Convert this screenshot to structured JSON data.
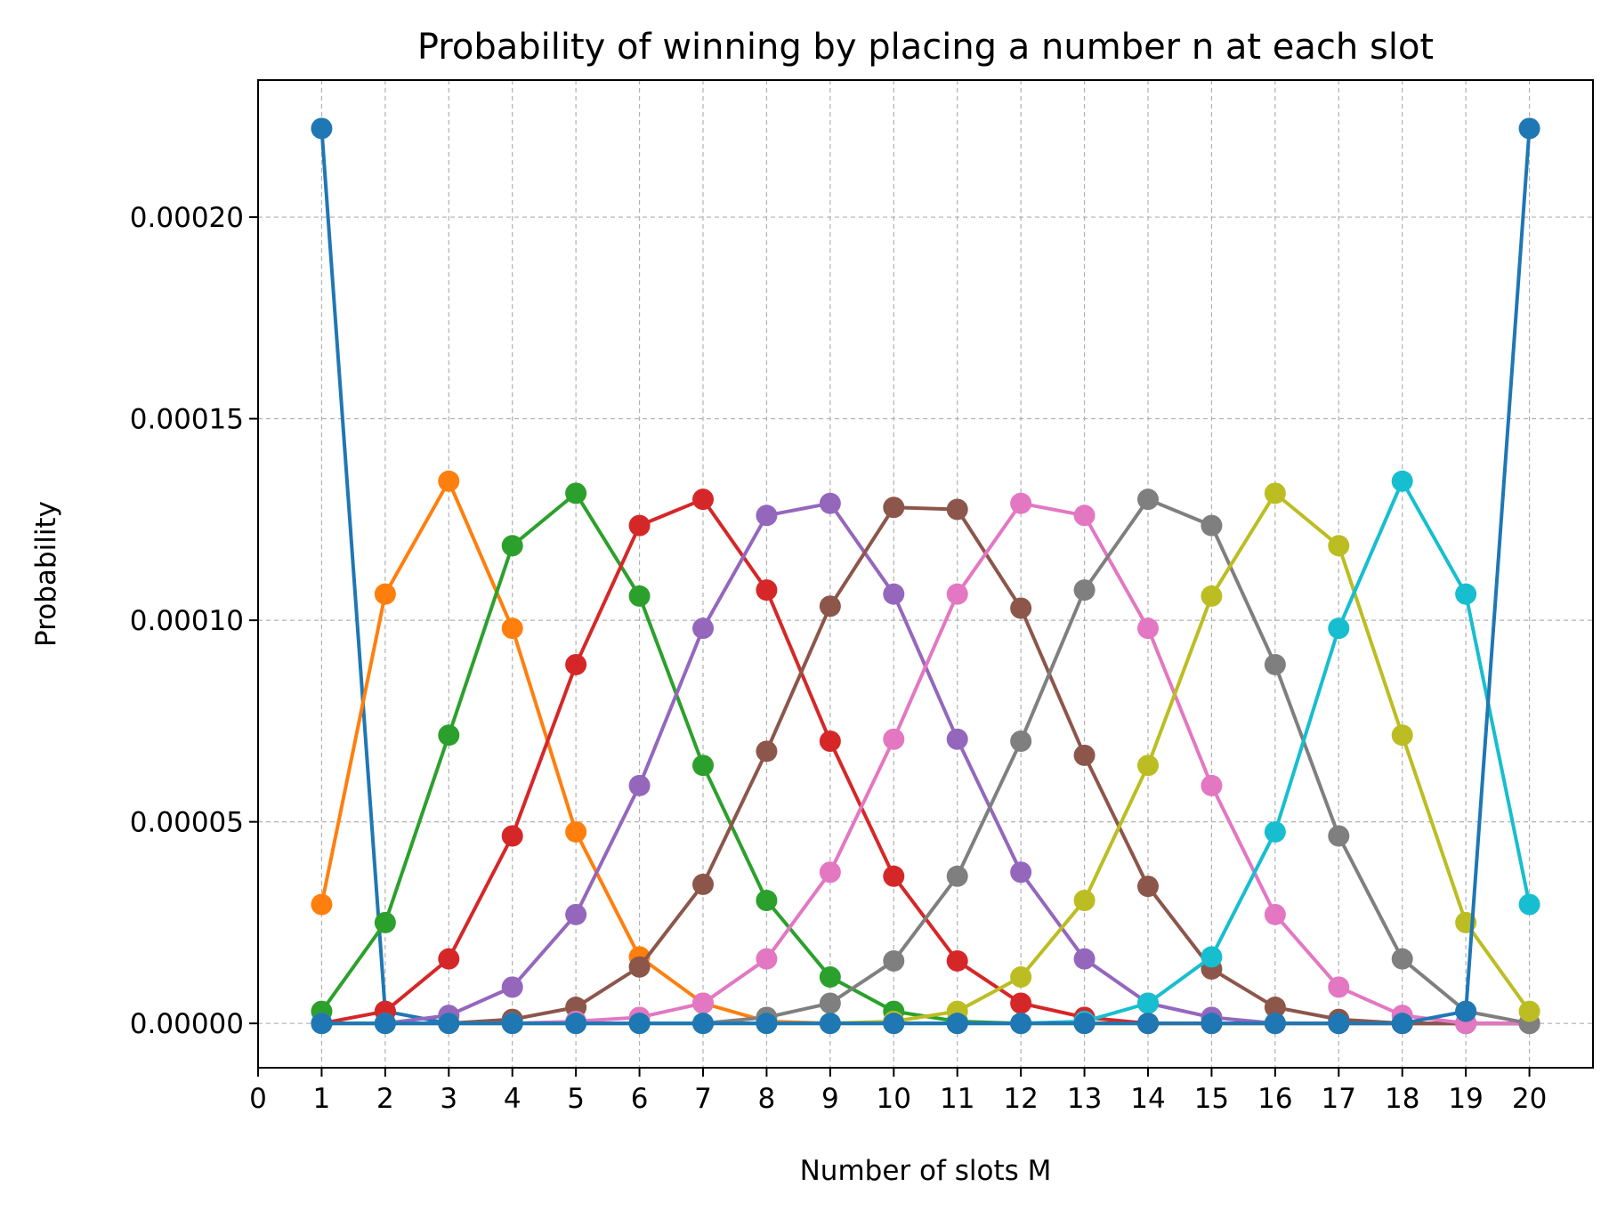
{
  "chart_data": {
    "type": "line",
    "title": "Probability of winning by placing a number n at each slot",
    "xlabel": "Number of slots M",
    "ylabel": "Probability",
    "xlim": [
      0,
      21
    ],
    "ylim": [
      -1.1e-05,
      0.000234
    ],
    "xticks": [
      0,
      1,
      2,
      3,
      4,
      5,
      6,
      7,
      8,
      9,
      10,
      11,
      12,
      13,
      14,
      15,
      16,
      17,
      18,
      19,
      20
    ],
    "yticks": [
      0,
      5e-05,
      0.0001,
      0.00015,
      0.0002
    ],
    "ytick_labels": [
      "0.00000",
      "0.00005",
      "0.00010",
      "0.00015",
      "0.00020"
    ],
    "grid": true,
    "marker": "circle",
    "x": [
      1,
      2,
      3,
      4,
      5,
      6,
      7,
      8,
      9,
      10,
      11,
      12,
      13,
      14,
      15,
      16,
      17,
      18,
      19,
      20
    ],
    "series": [
      {
        "color": "#1f77b4",
        "values": [
          0.000222,
          3e-06,
          0,
          0,
          0,
          0,
          0,
          0,
          0,
          0,
          0,
          0,
          0,
          0,
          0,
          0,
          0,
          0,
          0,
          0
        ]
      },
      {
        "color": "#ff7f0e",
        "values": [
          2.95e-05,
          0.0001065,
          0.0001345,
          9.8e-05,
          4.75e-05,
          1.65e-05,
          5e-06,
          5e-07,
          0,
          0,
          0,
          0,
          0,
          0,
          0,
          0,
          0,
          0,
          0,
          0
        ]
      },
      {
        "color": "#2ca02c",
        "values": [
          3e-06,
          2.5e-05,
          7.15e-05,
          0.0001185,
          0.0001315,
          0.000106,
          6.4e-05,
          3.05e-05,
          1.15e-05,
          3e-06,
          5e-07,
          0,
          0,
          0,
          0,
          0,
          0,
          0,
          0,
          0
        ]
      },
      {
        "color": "#d62728",
        "values": [
          0,
          3e-06,
          1.6e-05,
          4.65e-05,
          8.9e-05,
          0.0001235,
          0.00013,
          0.0001075,
          7e-05,
          3.65e-05,
          1.55e-05,
          5e-06,
          1.5e-06,
          0,
          0,
          0,
          0,
          0,
          0,
          0
        ]
      },
      {
        "color": "#9467bd",
        "values": [
          0,
          0,
          2e-06,
          9e-06,
          2.7e-05,
          5.9e-05,
          9.8e-05,
          0.000126,
          0.000129,
          0.0001065,
          7.05e-05,
          3.75e-05,
          1.6e-05,
          5e-06,
          1.5e-06,
          0,
          0,
          0,
          0,
          0
        ]
      },
      {
        "color": "#8c564b",
        "values": [
          0,
          0,
          0,
          1e-06,
          4e-06,
          1.4e-05,
          3.45e-05,
          6.75e-05,
          0.0001035,
          0.000128,
          0.0001275,
          0.000103,
          6.65e-05,
          3.4e-05,
          1.35e-05,
          4e-06,
          1e-06,
          0,
          0,
          0
        ]
      },
      {
        "color": "#e377c2",
        "values": [
          0,
          0,
          0,
          0,
          5e-07,
          1.5e-06,
          5e-06,
          1.6e-05,
          3.75e-05,
          7.05e-05,
          0.0001065,
          0.000129,
          0.000126,
          9.8e-05,
          5.9e-05,
          2.7e-05,
          9e-06,
          2e-06,
          0,
          0
        ]
      },
      {
        "color": "#7f7f7f",
        "values": [
          0,
          0,
          0,
          0,
          0,
          0,
          0,
          1.5e-06,
          5e-06,
          1.55e-05,
          3.65e-05,
          7e-05,
          0.0001075,
          0.00013,
          0.0001235,
          8.9e-05,
          4.65e-05,
          1.6e-05,
          3e-06,
          0
        ]
      },
      {
        "color": "#bcbd22",
        "values": [
          0,
          0,
          0,
          0,
          0,
          0,
          0,
          0,
          0,
          5e-07,
          3e-06,
          1.15e-05,
          3.05e-05,
          6.4e-05,
          0.000106,
          0.0001315,
          0.0001185,
          7.15e-05,
          2.5e-05,
          3e-06
        ]
      },
      {
        "color": "#17becf",
        "values": [
          0,
          0,
          0,
          0,
          0,
          0,
          0,
          0,
          0,
          0,
          0,
          0,
          5e-07,
          5e-06,
          1.65e-05,
          4.75e-05,
          9.8e-05,
          0.0001345,
          0.0001065,
          2.95e-05
        ]
      },
      {
        "color": "#1f77b4",
        "values": [
          0,
          0,
          0,
          0,
          0,
          0,
          0,
          0,
          0,
          0,
          0,
          0,
          0,
          0,
          0,
          0,
          0,
          0,
          3e-06,
          0.000222
        ]
      }
    ]
  }
}
